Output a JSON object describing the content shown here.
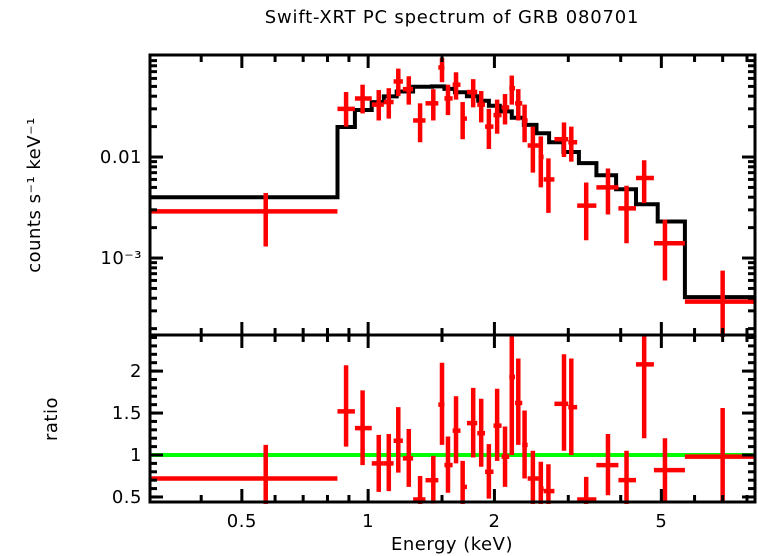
{
  "chart_data": {
    "type": "line",
    "subtype": "xray-spectrum-with-ratio",
    "title": "Swift-XRT PC spectrum of GRB 080701",
    "xlabel": "Energy (keV)",
    "ylabel_top": "counts s⁻¹ keV⁻¹",
    "ylabel_bottom": "ratio",
    "x_scale": "log",
    "x_range_kev": [
      0.302,
      8.36
    ],
    "x_major_ticks": [
      {
        "value": 0.5,
        "label": "0.5"
      },
      {
        "value": 1,
        "label": "1"
      },
      {
        "value": 2,
        "label": "2"
      },
      {
        "value": 5,
        "label": "5"
      }
    ],
    "x_minor_ticks": [
      0.4,
      0.6,
      0.7,
      0.8,
      0.9,
      1.5,
      3,
      4,
      6,
      7,
      8
    ],
    "top_panel": {
      "y_scale": "log",
      "y_range": [
        0.000173,
        0.1023
      ],
      "y_major_ticks": [
        {
          "value": 0.01,
          "label": "0.01"
        },
        {
          "value": 0.001,
          "label": "10⁻³"
        }
      ]
    },
    "bottom_panel": {
      "y_scale": "linear",
      "y_range": [
        0.44,
        2.43
      ],
      "y_major_ticks": [
        {
          "value": 0.5,
          "label": "0.5"
        },
        {
          "value": 1,
          "label": "1"
        },
        {
          "value": 1.5,
          "label": "1.5"
        },
        {
          "value": 2,
          "label": "2"
        }
      ],
      "reference_line": 1.0
    },
    "colors": {
      "data": "#ff0000",
      "model": "#000000",
      "reference": "#00ff00",
      "frame": "#000000",
      "background": "#ffffff"
    },
    "legend": "none",
    "grid": false,
    "model_columns": [
      "e_lo_kev",
      "e_hi_kev",
      "rate"
    ],
    "model_steps": [
      [
        0.3,
        0.845,
        0.004
      ],
      [
        0.845,
        0.93,
        0.0198
      ],
      [
        0.93,
        1.02,
        0.0292
      ],
      [
        1.02,
        1.09,
        0.035
      ],
      [
        1.09,
        1.17,
        0.0398
      ],
      [
        1.17,
        1.28,
        0.0445
      ],
      [
        1.28,
        1.42,
        0.0495
      ],
      [
        1.42,
        1.52,
        0.05
      ],
      [
        1.52,
        1.61,
        0.0472
      ],
      [
        1.61,
        1.72,
        0.0438
      ],
      [
        1.72,
        1.83,
        0.04
      ],
      [
        1.83,
        1.94,
        0.036
      ],
      [
        1.94,
        2.06,
        0.0322
      ],
      [
        2.06,
        2.2,
        0.0283
      ],
      [
        2.2,
        2.35,
        0.0245
      ],
      [
        2.35,
        2.52,
        0.0208
      ],
      [
        2.52,
        2.7,
        0.0172
      ],
      [
        2.7,
        2.92,
        0.014
      ],
      [
        2.92,
        3.18,
        0.0112
      ],
      [
        3.18,
        3.5,
        0.0087
      ],
      [
        3.5,
        3.9,
        0.0066
      ],
      [
        3.9,
        4.35,
        0.0048
      ],
      [
        4.35,
        4.9,
        0.0034
      ],
      [
        4.9,
        5.69,
        0.0023
      ],
      [
        5.69,
        8.35,
        0.00041
      ]
    ],
    "spectrum_columns": [
      "e_kev",
      "e_lo_kev",
      "e_hi_kev",
      "rate",
      "rate_lo",
      "rate_hi"
    ],
    "spectrum_points": [
      [
        0.57,
        0.3,
        0.845,
        0.0029,
        0.0013,
        0.0044
      ],
      [
        0.886,
        0.845,
        0.93,
        0.03,
        0.02,
        0.044
      ],
      [
        0.97,
        0.93,
        1.02,
        0.038,
        0.027,
        0.052
      ],
      [
        1.06,
        1.02,
        1.09,
        0.033,
        0.023,
        0.046
      ],
      [
        1.12,
        1.09,
        1.15,
        0.035,
        0.024,
        0.048
      ],
      [
        1.18,
        1.15,
        1.21,
        0.056,
        0.04,
        0.075
      ],
      [
        1.25,
        1.21,
        1.28,
        0.047,
        0.033,
        0.063
      ],
      [
        1.33,
        1.28,
        1.37,
        0.023,
        0.014,
        0.034
      ],
      [
        1.43,
        1.37,
        1.47,
        0.034,
        0.023,
        0.047
      ],
      [
        1.5,
        1.47,
        1.52,
        0.077,
        0.055,
        0.096
      ],
      [
        1.55,
        1.52,
        1.59,
        0.038,
        0.026,
        0.052
      ],
      [
        1.62,
        1.59,
        1.66,
        0.052,
        0.037,
        0.069
      ],
      [
        1.68,
        1.66,
        1.72,
        0.024,
        0.015,
        0.035
      ],
      [
        1.78,
        1.72,
        1.82,
        0.044,
        0.031,
        0.059
      ],
      [
        1.86,
        1.82,
        1.9,
        0.033,
        0.022,
        0.045
      ],
      [
        1.94,
        1.9,
        1.99,
        0.02,
        0.012,
        0.03
      ],
      [
        2.03,
        1.99,
        2.08,
        0.026,
        0.017,
        0.037
      ],
      [
        2.12,
        2.08,
        2.17,
        0.031,
        0.021,
        0.042
      ],
      [
        2.2,
        2.17,
        2.24,
        0.048,
        0.033,
        0.064
      ],
      [
        2.28,
        2.24,
        2.33,
        0.034,
        0.023,
        0.047
      ],
      [
        2.36,
        2.33,
        2.4,
        0.023,
        0.014,
        0.033
      ],
      [
        2.47,
        2.4,
        2.55,
        0.013,
        0.007,
        0.02
      ],
      [
        2.58,
        2.55,
        2.62,
        0.01,
        0.005,
        0.016
      ],
      [
        2.69,
        2.62,
        2.78,
        0.006,
        0.0028,
        0.0097
      ],
      [
        2.93,
        2.78,
        3.0,
        0.015,
        0.01,
        0.022
      ],
      [
        3.05,
        3.0,
        3.15,
        0.014,
        0.009,
        0.02
      ],
      [
        3.31,
        3.15,
        3.5,
        0.0033,
        0.0015,
        0.0056
      ],
      [
        3.73,
        3.5,
        3.95,
        0.005,
        0.0027,
        0.0077
      ],
      [
        4.13,
        3.95,
        4.35,
        0.0031,
        0.0014,
        0.0052
      ],
      [
        4.55,
        4.35,
        4.8,
        0.0062,
        0.0035,
        0.0093
      ],
      [
        5.1,
        4.8,
        5.69,
        0.0014,
        0.0006,
        0.0024
      ],
      [
        7.0,
        5.69,
        8.35,
        0.00037,
        0.00012,
        0.00075
      ]
    ],
    "ratio_columns": [
      "e_kev",
      "e_lo_kev",
      "e_hi_kev",
      "ratio",
      "ratio_lo",
      "ratio_hi"
    ],
    "ratio_points": [
      [
        0.57,
        0.3,
        0.845,
        0.72,
        0.4,
        1.12
      ],
      [
        0.886,
        0.845,
        0.93,
        1.52,
        1.1,
        2.07
      ],
      [
        0.97,
        0.93,
        1.02,
        1.32,
        0.88,
        1.77
      ],
      [
        1.06,
        1.02,
        1.09,
        0.9,
        0.56,
        1.24
      ],
      [
        1.12,
        1.09,
        1.15,
        0.9,
        0.57,
        1.25
      ],
      [
        1.18,
        1.15,
        1.21,
        1.17,
        0.79,
        1.57
      ],
      [
        1.25,
        1.21,
        1.28,
        0.96,
        0.62,
        1.31
      ],
      [
        1.33,
        1.28,
        1.37,
        0.47,
        0.2,
        0.75
      ],
      [
        1.43,
        1.37,
        1.47,
        0.7,
        0.42,
        0.99
      ],
      [
        1.5,
        1.47,
        1.52,
        1.6,
        1.12,
        2.1
      ],
      [
        1.55,
        1.52,
        1.59,
        0.88,
        0.55,
        1.22
      ],
      [
        1.62,
        1.59,
        1.66,
        1.29,
        0.9,
        1.7
      ],
      [
        1.68,
        1.66,
        1.72,
        0.62,
        0.32,
        0.93
      ],
      [
        1.78,
        1.72,
        1.82,
        1.38,
        0.97,
        1.8
      ],
      [
        1.86,
        1.82,
        1.9,
        1.26,
        0.86,
        1.67
      ],
      [
        1.94,
        1.9,
        1.99,
        0.8,
        0.48,
        1.13
      ],
      [
        2.03,
        1.99,
        2.08,
        1.35,
        0.93,
        1.79
      ],
      [
        2.12,
        2.08,
        2.17,
        0.98,
        0.62,
        1.34
      ],
      [
        2.2,
        2.17,
        2.24,
        1.93,
        1.0,
        2.42
      ],
      [
        2.28,
        2.24,
        2.33,
        1.62,
        1.12,
        2.15
      ],
      [
        2.36,
        2.33,
        2.4,
        1.12,
        0.72,
        1.53
      ],
      [
        2.47,
        2.4,
        2.55,
        0.72,
        0.4,
        1.05
      ],
      [
        2.58,
        2.55,
        2.62,
        0.6,
        0.28,
        0.92
      ],
      [
        2.69,
        2.62,
        2.78,
        0.57,
        0.26,
        0.89
      ],
      [
        2.93,
        2.78,
        3.0,
        1.61,
        1.05,
        2.2
      ],
      [
        3.05,
        3.0,
        3.15,
        1.57,
        1.0,
        2.15
      ],
      [
        3.31,
        3.15,
        3.5,
        0.47,
        0.2,
        0.74
      ],
      [
        3.73,
        3.5,
        3.95,
        0.88,
        0.52,
        1.25
      ],
      [
        4.13,
        3.95,
        4.35,
        0.7,
        0.36,
        1.05
      ],
      [
        4.55,
        4.35,
        4.8,
        2.08,
        1.2,
        2.42
      ],
      [
        5.1,
        4.8,
        5.69,
        0.82,
        0.45,
        1.2
      ],
      [
        7.0,
        5.69,
        8.35,
        0.98,
        0.44,
        1.56
      ]
    ]
  }
}
